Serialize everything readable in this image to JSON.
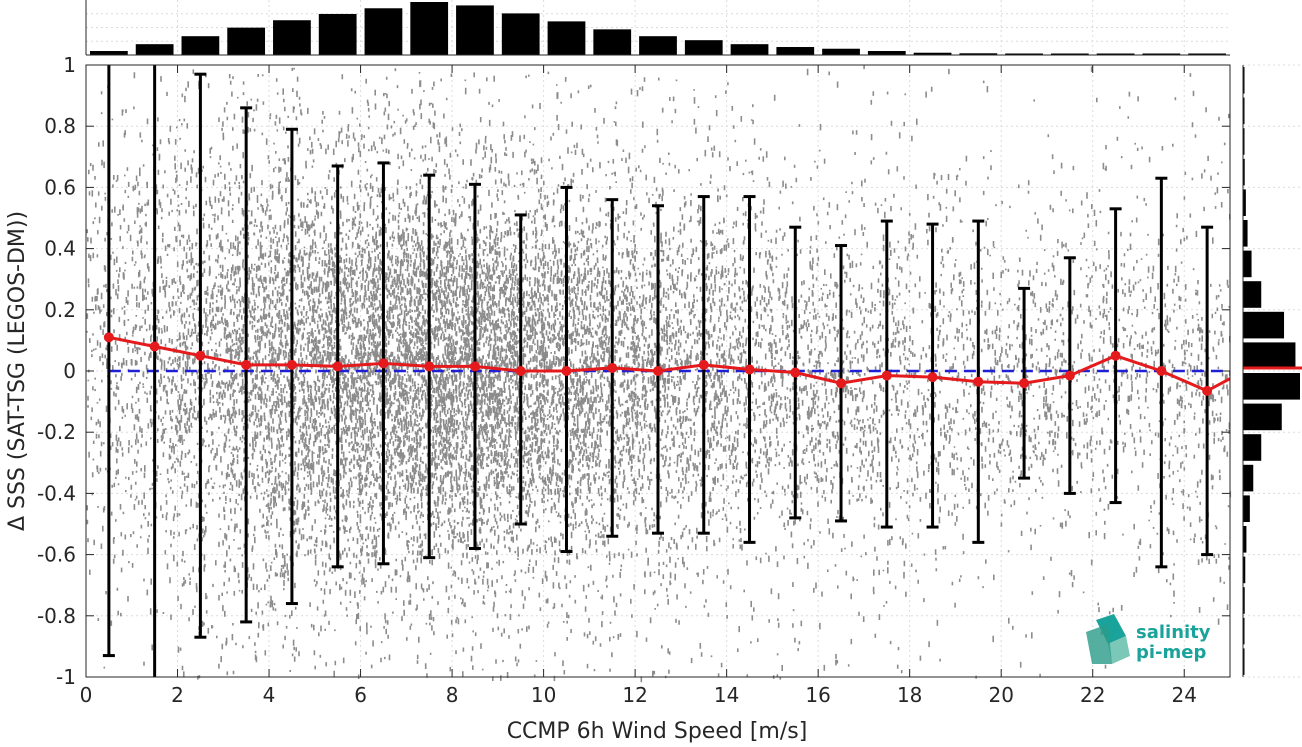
{
  "chart_data": {
    "type": "scatter",
    "xlabel": "CCMP 6h Wind Speed [m/s]",
    "ylabel": "Δ SSS (SAT-TSG (LEGOS-DM))",
    "xlim": [
      0,
      25
    ],
    "ylim": [
      -1,
      1
    ],
    "xticks": [
      0,
      2,
      4,
      6,
      8,
      10,
      12,
      14,
      16,
      18,
      20,
      22,
      24
    ],
    "yticks": [
      -1,
      -0.8,
      -0.6,
      -0.4,
      -0.2,
      0,
      0.2,
      0.4,
      0.6,
      0.8,
      1
    ],
    "ytick_labels": [
      "-1",
      "-0.8",
      "-0.6",
      "-0.4",
      "-0.2",
      "0",
      "0.2",
      "0.4",
      "0.6",
      "0.8",
      "1"
    ],
    "grid": true,
    "scatter_color": "#808080",
    "mean_color": "#e41a1c",
    "zero_line_color": "#1f1fd6",
    "bin_centers": [
      0.5,
      1.5,
      2.5,
      3.5,
      4.5,
      5.5,
      6.5,
      7.5,
      8.5,
      9.5,
      10.5,
      11.5,
      12.5,
      13.5,
      14.5,
      15.5,
      16.5,
      17.5,
      18.5,
      19.5,
      20.5,
      21.5,
      22.5,
      23.5,
      24.5
    ],
    "mean": [
      0.11,
      0.08,
      0.05,
      0.02,
      0.02,
      0.015,
      0.025,
      0.015,
      0.015,
      0.0,
      0.0,
      0.01,
      0.0,
      0.02,
      0.005,
      -0.005,
      -0.04,
      -0.015,
      -0.02,
      -0.035,
      -0.04,
      -0.015,
      0.05,
      0.0,
      -0.065
    ],
    "err_upper": [
      1.0,
      1.0,
      0.97,
      0.86,
      0.79,
      0.67,
      0.68,
      0.64,
      0.61,
      0.51,
      0.6,
      0.56,
      0.54,
      0.57,
      0.57,
      0.47,
      0.41,
      0.49,
      0.48,
      0.49,
      0.27,
      0.37,
      0.53,
      0.63,
      0.47
    ],
    "err_lower": [
      -0.93,
      -1.0,
      -0.87,
      -0.82,
      -0.76,
      -0.64,
      -0.63,
      -0.61,
      -0.58,
      -0.5,
      -0.59,
      -0.54,
      -0.53,
      -0.53,
      -0.56,
      -0.48,
      -0.49,
      -0.51,
      -0.51,
      -0.56,
      -0.35,
      -0.4,
      -0.43,
      -0.64,
      -0.6
    ],
    "top_histogram": [
      0.07,
      0.19,
      0.33,
      0.48,
      0.61,
      0.72,
      0.82,
      0.93,
      0.87,
      0.73,
      0.59,
      0.45,
      0.33,
      0.26,
      0.19,
      0.14,
      0.11,
      0.07,
      0.04,
      0.03,
      0.02,
      0.015,
      0.01,
      0.008,
      0.006
    ],
    "right_histogram": {
      "y_centers": [
        -0.95,
        -0.85,
        -0.75,
        -0.65,
        -0.55,
        -0.45,
        -0.35,
        -0.25,
        -0.15,
        -0.05,
        0.05,
        0.15,
        0.25,
        0.35,
        0.45,
        0.55,
        0.65,
        0.75,
        0.85,
        0.95
      ],
      "values": [
        0.01,
        0.02,
        0.03,
        0.04,
        0.06,
        0.12,
        0.18,
        0.32,
        0.68,
        1.0,
        0.92,
        0.72,
        0.32,
        0.15,
        0.08,
        0.05,
        0.03,
        0.02,
        0.015,
        0.01
      ],
      "mean_y": 0.01
    }
  },
  "logo": {
    "line1": "salinity",
    "line2": "pi-mep"
  }
}
